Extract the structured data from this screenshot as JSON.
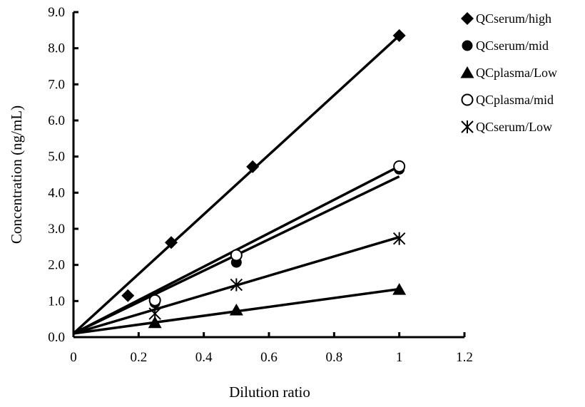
{
  "chart_data": {
    "type": "scatter",
    "title": "",
    "xlabel": "Dilution ratio",
    "ylabel": "Concentration (ng/mL)",
    "xlim": [
      0,
      1.2
    ],
    "ylim": [
      0,
      9
    ],
    "x_ticks": [
      "0",
      "0.2",
      "0.4",
      "0.6",
      "0.8",
      "1",
      "1.2"
    ],
    "y_ticks": [
      "0.0",
      "1.0",
      "2.0",
      "3.0",
      "4.0",
      "5.0",
      "6.0",
      "7.0",
      "8.0",
      "9.0"
    ],
    "grid": false,
    "legend_position": "top-right",
    "series": [
      {
        "name": "QCserum/high",
        "marker": "diamond",
        "points": [
          [
            0.167,
            1.15
          ],
          [
            0.3,
            2.62
          ],
          [
            0.55,
            4.72
          ],
          [
            1.0,
            8.35
          ]
        ],
        "trendline": [
          [
            0,
            0.1
          ],
          [
            1.0,
            8.35
          ]
        ]
      },
      {
        "name": "QCserum/mid",
        "marker": "circle-filled",
        "points": [
          [
            0.25,
            0.95
          ],
          [
            0.5,
            2.07
          ],
          [
            1.0,
            4.65
          ]
        ],
        "trendline": [
          [
            0,
            0.1
          ],
          [
            1.0,
            4.45
          ]
        ]
      },
      {
        "name": "QCplasma/Low",
        "marker": "triangle",
        "points": [
          [
            0.25,
            0.4
          ],
          [
            0.5,
            0.75
          ],
          [
            1.0,
            1.32
          ]
        ],
        "trendline": [
          [
            0,
            0.1
          ],
          [
            1.0,
            1.33
          ]
        ]
      },
      {
        "name": "QCplasma/mid",
        "marker": "circle-open",
        "points": [
          [
            0.25,
            1.02
          ],
          [
            0.5,
            2.27
          ],
          [
            1.0,
            4.73
          ]
        ],
        "trendline": [
          [
            0,
            0.1
          ],
          [
            1.0,
            4.73
          ]
        ]
      },
      {
        "name": "QCserum/Low",
        "marker": "asterisk",
        "points": [
          [
            0.25,
            0.65
          ],
          [
            0.5,
            1.45
          ],
          [
            1.0,
            2.73
          ]
        ],
        "trendline": [
          [
            0,
            0.1
          ],
          [
            1.0,
            2.77
          ]
        ]
      }
    ]
  }
}
